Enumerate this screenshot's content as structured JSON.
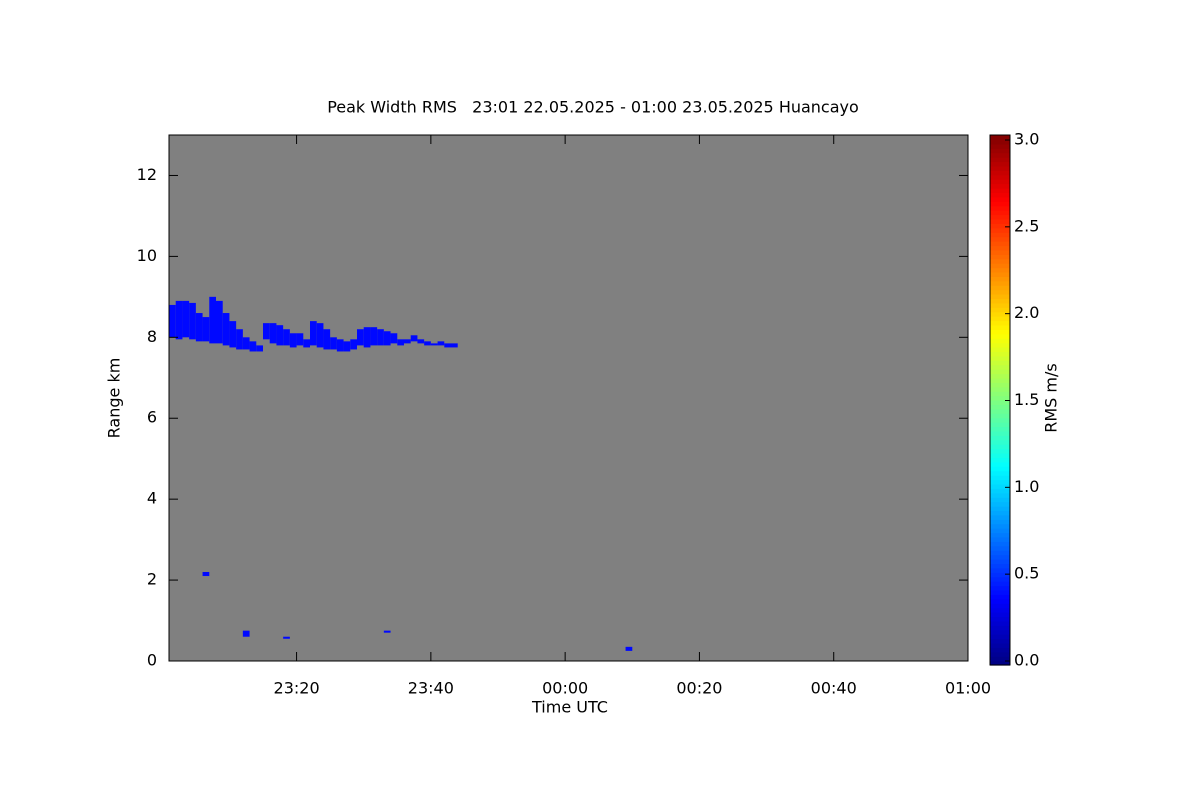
{
  "chart_data": {
    "type": "heatmap",
    "title": "Peak Width RMS   23:01 22.05.2025 - 01:00 23.05.2025 Huancayo",
    "xlabel": "Time UTC",
    "ylabel": "Range km",
    "colorbar_label": "RMS m/s",
    "colormap": "jet",
    "background": "#808080",
    "xlim": [
      "23:01",
      "01:00"
    ],
    "xticks": [
      "23:20",
      "23:40",
      "00:00",
      "00:20",
      "00:40",
      "01:00"
    ],
    "ylim": [
      0,
      13
    ],
    "yticks": [
      0,
      2,
      4,
      6,
      8,
      10,
      12
    ],
    "clim": [
      0,
      3
    ],
    "cticks": [
      {
        "value": 0,
        "label": "0.0"
      },
      {
        "value": 0.5,
        "label": "0.5"
      },
      {
        "value": 1,
        "label": "1.0"
      },
      {
        "value": 1.5,
        "label": "1.5"
      },
      {
        "value": 2,
        "label": "2.0"
      },
      {
        "value": 2.5,
        "label": "2.5"
      },
      {
        "value": 3,
        "label": "3.0"
      }
    ],
    "cells": {
      "x": [
        "23:01",
        "23:02",
        "23:03",
        "23:04",
        "23:05",
        "23:06",
        "23:07",
        "23:08",
        "23:09",
        "23:10",
        "23:11",
        "23:12",
        "23:13",
        "23:14",
        "23:15",
        "23:16",
        "23:17",
        "23:18",
        "23:19",
        "23:20",
        "23:21",
        "23:22",
        "23:23",
        "23:24",
        "23:25",
        "23:26",
        "23:27",
        "23:28",
        "23:29",
        "23:30",
        "23:31",
        "23:32",
        "23:33",
        "23:34",
        "23:35",
        "23:36",
        "23:37",
        "23:38",
        "23:39",
        "23:40",
        "23:41",
        "23:42",
        "23:43",
        "23:06",
        "23:12",
        "23:18",
        "23:33",
        "00:09"
      ],
      "y0": [
        8.0,
        7.95,
        8.0,
        7.95,
        7.9,
        7.9,
        7.85,
        7.85,
        7.8,
        7.75,
        7.7,
        7.7,
        7.65,
        7.65,
        7.95,
        7.85,
        7.8,
        7.8,
        7.75,
        7.8,
        7.75,
        7.8,
        7.75,
        7.7,
        7.7,
        7.65,
        7.65,
        7.7,
        7.8,
        7.75,
        7.8,
        7.8,
        7.8,
        7.85,
        7.8,
        7.85,
        7.9,
        7.85,
        7.8,
        7.8,
        7.8,
        7.75,
        7.75,
        2.1,
        0.6,
        0.55,
        0.7,
        0.25
      ],
      "y1": [
        8.8,
        8.9,
        8.9,
        8.85,
        8.6,
        8.5,
        9.0,
        8.9,
        8.6,
        8.4,
        8.2,
        8.0,
        7.9,
        7.8,
        8.35,
        8.35,
        8.3,
        8.2,
        8.1,
        8.1,
        7.95,
        8.4,
        8.35,
        8.2,
        8.0,
        7.95,
        7.9,
        7.95,
        8.2,
        8.25,
        8.25,
        8.2,
        8.15,
        8.1,
        7.95,
        7.95,
        8.05,
        7.95,
        7.9,
        7.85,
        7.9,
        7.85,
        7.85,
        2.2,
        0.75,
        0.6,
        0.75,
        0.35
      ],
      "values": [
        0.4,
        0.4,
        0.4,
        0.4,
        0.4,
        0.4,
        0.4,
        0.4,
        0.4,
        0.4,
        0.4,
        0.4,
        0.4,
        0.4,
        0.4,
        0.4,
        0.4,
        0.4,
        0.4,
        0.4,
        0.4,
        0.4,
        0.4,
        0.4,
        0.4,
        0.4,
        0.4,
        0.4,
        0.4,
        0.4,
        0.4,
        0.4,
        0.4,
        0.4,
        0.4,
        0.4,
        0.4,
        0.4,
        0.4,
        0.4,
        0.4,
        0.4,
        0.4,
        0.4,
        0.4,
        0.4,
        0.4,
        0.4
      ]
    }
  }
}
